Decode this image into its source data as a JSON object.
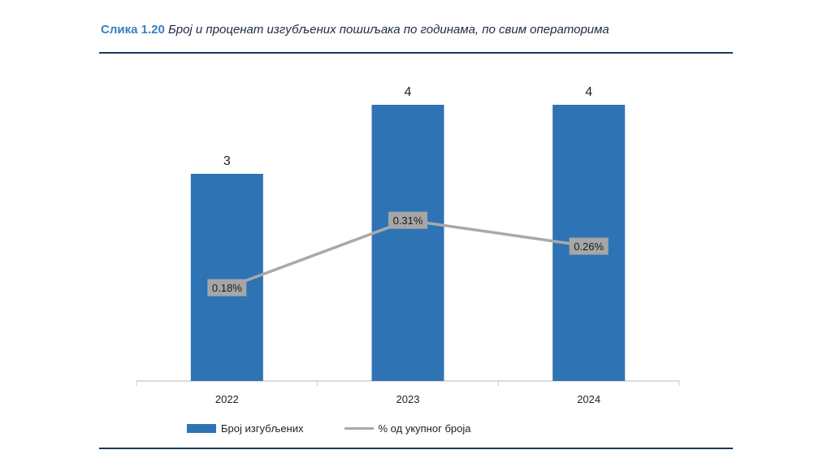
{
  "caption": {
    "label": "Слика 1.20",
    "text": "Број и проценат изгубљених пошиљака по годинама, по свим операторима"
  },
  "colors": {
    "bar": "#2e74b5",
    "line": "#a9a9a9",
    "point_label_bg": "#a6a6a6"
  },
  "chart_data": {
    "type": "bar",
    "categories": [
      "2022",
      "2023",
      "2024"
    ],
    "series": [
      {
        "name": "Број изгубљених",
        "type": "bar",
        "values": [
          3,
          4,
          4
        ],
        "labels": [
          "3",
          "4",
          "4"
        ]
      },
      {
        "name": "% од укупног броја",
        "type": "line",
        "values": [
          0.18,
          0.31,
          0.26
        ],
        "labels": [
          "0.18%",
          "0.31%",
          "0.26%"
        ]
      }
    ],
    "y_primary_range": [
      0,
      4.4
    ],
    "y_secondary_range": [
      0,
      0.4
    ],
    "grid": false,
    "legend_position": "bottom"
  }
}
